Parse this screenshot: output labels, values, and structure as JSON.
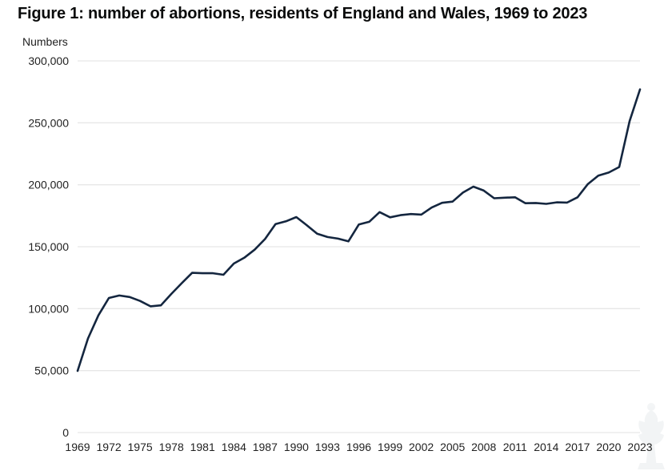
{
  "chart_data": {
    "type": "line",
    "title": "Figure 1: number of abortions, residents of England and Wales, 1969 to 2023",
    "ylabel": "Numbers",
    "xlabel": "",
    "xlim": [
      1969,
      2023
    ],
    "ylim": [
      0,
      300000
    ],
    "grid": "horizontal",
    "legend": "none",
    "colors": {
      "line": "#14263f",
      "grid": "#e7e7e7",
      "text": "#222222"
    },
    "y_ticks": [
      0,
      50000,
      100000,
      150000,
      200000,
      250000,
      300000
    ],
    "y_tick_labels": [
      "0",
      "50,000",
      "100,000",
      "150,000",
      "200,000",
      "250,000",
      "300,000"
    ],
    "x_ticks": [
      1969,
      1972,
      1975,
      1978,
      1981,
      1984,
      1987,
      1990,
      1993,
      1996,
      1999,
      2002,
      2005,
      2008,
      2011,
      2014,
      2017,
      2020,
      2023
    ],
    "x_tick_labels": [
      "1969",
      "1972",
      "1975",
      "1978",
      "1981",
      "1984",
      "1987",
      "1990",
      "1993",
      "1996",
      "1999",
      "2002",
      "2005",
      "2008",
      "2011",
      "2014",
      "2017",
      "2020",
      "2023"
    ],
    "series": [
      {
        "name": "Number of abortions",
        "x": [
          1969,
          1970,
          1971,
          1972,
          1973,
          1974,
          1975,
          1976,
          1977,
          1978,
          1979,
          1980,
          1981,
          1982,
          1983,
          1984,
          1985,
          1986,
          1987,
          1988,
          1989,
          1990,
          1991,
          1992,
          1993,
          1994,
          1995,
          1996,
          1997,
          1998,
          1999,
          2000,
          2001,
          2002,
          2003,
          2004,
          2005,
          2006,
          2007,
          2008,
          2009,
          2010,
          2011,
          2012,
          2013,
          2014,
          2015,
          2016,
          2017,
          2018,
          2019,
          2020,
          2021,
          2022,
          2023
        ],
        "values": [
          49800,
          76000,
          94600,
          108600,
          110600,
          109400,
          106200,
          101900,
          102700,
          111900,
          120600,
          128900,
          128600,
          128600,
          127400,
          136400,
          141100,
          147600,
          156200,
          168300,
          170500,
          173900,
          167400,
          160500,
          157800,
          156500,
          154300,
          167900,
          170100,
          177900,
          173700,
          175500,
          176400,
          175900,
          181600,
          185400,
          186400,
          193700,
          198500,
          195300,
          189100,
          189600,
          189900,
          185100,
          185300,
          184600,
          185800,
          185600,
          189900,
          200600,
          207400,
          209900,
          214300,
          251400,
          277000
        ]
      }
    ]
  }
}
